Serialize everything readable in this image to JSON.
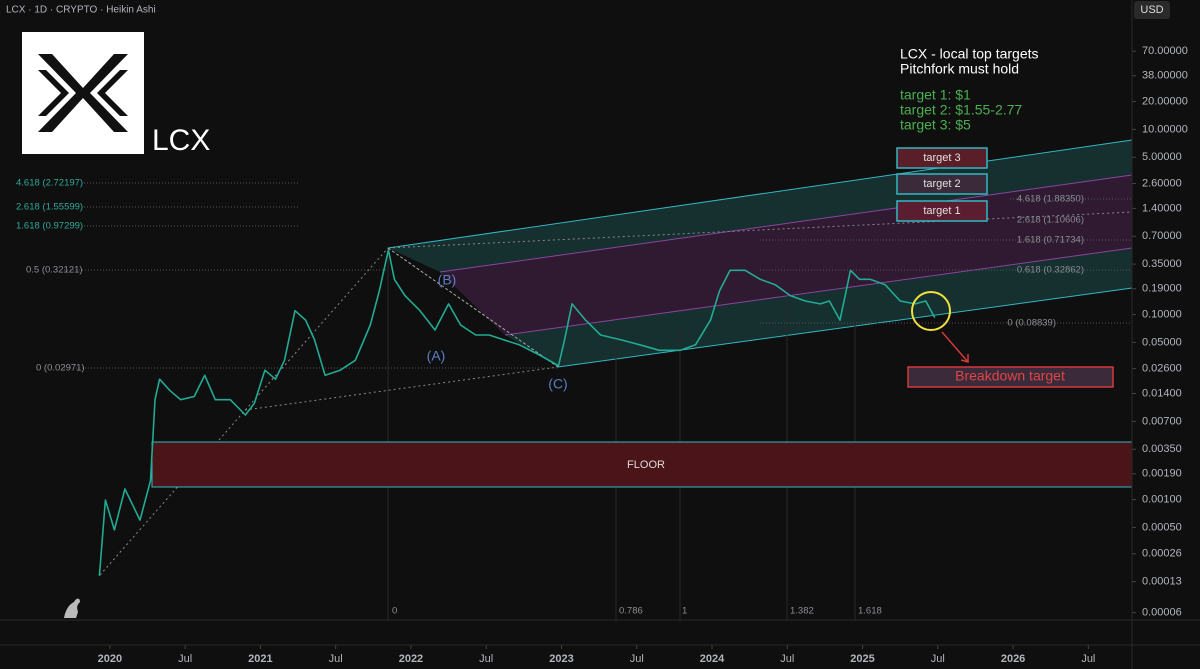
{
  "chart_data": {
    "type": "line",
    "title": "LCX · 1D · CRYPTO · Heikin Ashi",
    "currency": "USD",
    "log_scale": true,
    "color": "#22ab94",
    "x": [
      2019.93,
      2019.97,
      2020.03,
      2020.1,
      2020.2,
      2020.27,
      2020.3,
      2020.33,
      2020.4,
      2020.47,
      2020.56,
      2020.63,
      2020.7,
      2020.8,
      2020.9,
      2020.96,
      2021.03,
      2021.1,
      2021.16,
      2021.23,
      2021.3,
      2021.36,
      2021.43,
      2021.53,
      2021.63,
      2021.73,
      2021.79,
      2021.85,
      2021.89,
      2021.96,
      2022.06,
      2022.16,
      2022.25,
      2022.33,
      2022.43,
      2022.52,
      2022.62,
      2022.72,
      2022.86,
      2022.98,
      2023.02,
      2023.07,
      2023.16,
      2023.26,
      2023.4,
      2023.52,
      2023.65,
      2023.79,
      2023.89,
      2023.99,
      2024.05,
      2024.12,
      2024.22,
      2024.32,
      2024.42,
      2024.52,
      2024.62,
      2024.72,
      2024.78,
      2024.85,
      2024.92,
      2024.98,
      2025.05,
      2025.15,
      2025.25,
      2025.35,
      2025.42,
      2025.48
    ],
    "values": [
      0.00015,
      0.00099,
      0.00047,
      0.0013,
      0.0006,
      0.0016,
      0.012,
      0.02,
      0.015,
      0.012,
      0.013,
      0.022,
      0.012,
      0.012,
      0.0082,
      0.011,
      0.025,
      0.02,
      0.032,
      0.11,
      0.087,
      0.053,
      0.022,
      0.025,
      0.032,
      0.077,
      0.18,
      0.5,
      0.24,
      0.16,
      0.11,
      0.068,
      0.13,
      0.077,
      0.06,
      0.06,
      0.053,
      0.047,
      0.036,
      0.028,
      0.053,
      0.13,
      0.087,
      0.06,
      0.053,
      0.047,
      0.041,
      0.041,
      0.047,
      0.087,
      0.18,
      0.3,
      0.3,
      0.24,
      0.21,
      0.16,
      0.14,
      0.13,
      0.14,
      0.087,
      0.3,
      0.24,
      0.24,
      0.21,
      0.14,
      0.13,
      0.14,
      0.092
    ],
    "xlim": [
      2019.27,
      2026.79
    ],
    "xticks": [
      {
        "value": 2020,
        "label": "2020"
      },
      {
        "value": 2020.5,
        "label": "Jul"
      },
      {
        "value": 2021,
        "label": "2021"
      },
      {
        "value": 2021.5,
        "label": "Jul"
      },
      {
        "value": 2022,
        "label": "2022"
      },
      {
        "value": 2022.5,
        "label": "Jul"
      },
      {
        "value": 2023,
        "label": "2023"
      },
      {
        "value": 2023.5,
        "label": "Jul"
      },
      {
        "value": 2024,
        "label": "2024"
      },
      {
        "value": 2024.5,
        "label": "Jul"
      },
      {
        "value": 2025,
        "label": "2025"
      },
      {
        "value": 2025.5,
        "label": "Jul"
      },
      {
        "value": 2026,
        "label": "2026"
      },
      {
        "value": 2026.5,
        "label": "Jul"
      }
    ],
    "ylim": [
      5e-05,
      250
    ],
    "yticks": [
      {
        "value": 70,
        "label": "70.00000"
      },
      {
        "value": 38,
        "label": "38.00000"
      },
      {
        "value": 20,
        "label": "20.00000"
      },
      {
        "value": 10,
        "label": "10.00000"
      },
      {
        "value": 5,
        "label": "5.00000"
      },
      {
        "value": 2.6,
        "label": "2.60000"
      },
      {
        "value": 1.4,
        "label": "1.40000"
      },
      {
        "value": 0.7,
        "label": "0.70000"
      },
      {
        "value": 0.35,
        "label": "0.35000"
      },
      {
        "value": 0.19,
        "label": "0.19000"
      },
      {
        "value": 0.1,
        "label": "0.10000"
      },
      {
        "value": 0.05,
        "label": "0.05000"
      },
      {
        "value": 0.026,
        "label": "0.02600"
      },
      {
        "value": 0.014,
        "label": "0.01400"
      },
      {
        "value": 0.007,
        "label": "0.00700"
      },
      {
        "value": 0.0035,
        "label": "0.00350"
      },
      {
        "value": 0.0019,
        "label": "0.00190"
      },
      {
        "value": 0.001,
        "label": "0.00100"
      },
      {
        "value": 0.0005,
        "label": "0.00050"
      },
      {
        "value": 0.00026,
        "label": "0.00026"
      },
      {
        "value": 0.00013,
        "label": "0.00013"
      },
      {
        "value": 6e-05,
        "label": "0.00006"
      }
    ],
    "annotations": {
      "logo_text": "LCX",
      "notes": [
        "LCX - local top targets",
        "Pitchfork must hold"
      ],
      "targets": [
        "target 1: $1",
        "target 2: $1.55-2.77",
        "target 3: $5"
      ],
      "target_boxes": [
        "target 3",
        "target 2",
        "target 1"
      ],
      "breakdown": "Breakdown target",
      "floor": "FLOOR",
      "fib_left": [
        "4.618 (2.72197)",
        "2.618 (1.55599)",
        "1.618 (0.97299)",
        "0.5 (0.32121)",
        "0 (0.02971)"
      ],
      "fib_right": [
        "4.618 (1.88350)",
        "2.618 (1.10606)",
        "1.618 (0.71734)",
        "0.618 (0.32862)",
        "0 (0.08839)"
      ],
      "waves": [
        "(A)",
        "(B)",
        "(C)"
      ],
      "time_fib": [
        "0",
        "0.786",
        "1",
        "1.382",
        "1.618"
      ]
    }
  }
}
